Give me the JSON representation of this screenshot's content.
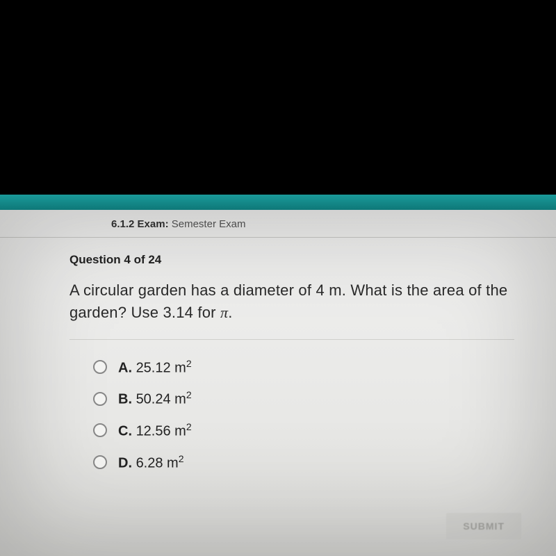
{
  "header": {
    "section_number": "6.1.2",
    "label": "Exam:",
    "exam_name": "Semester Exam"
  },
  "question": {
    "counter": "Question 4 of 24",
    "text_pre": "A circular garden has a diameter of 4 m. What is the area of the garden? Use 3.14 for ",
    "pi_symbol": "π",
    "text_post": "."
  },
  "options": [
    {
      "letter": "A.",
      "value": "25.12 m",
      "exp": "2"
    },
    {
      "letter": "B.",
      "value": "50.24 m",
      "exp": "2"
    },
    {
      "letter": "C.",
      "value": "12.56 m",
      "exp": "2"
    },
    {
      "letter": "D.",
      "value": "6.28 m",
      "exp": "2"
    }
  ],
  "buttons": {
    "submit": "SUBMIT"
  },
  "colors": {
    "black": "#000000",
    "teal": "#1a9a9a",
    "page_bg": "#e8e8e6",
    "text": "#2a2a2a",
    "divider": "#cfcfcc",
    "submit_bg": "#d6d6d3",
    "submit_text": "#a8a8a4"
  }
}
